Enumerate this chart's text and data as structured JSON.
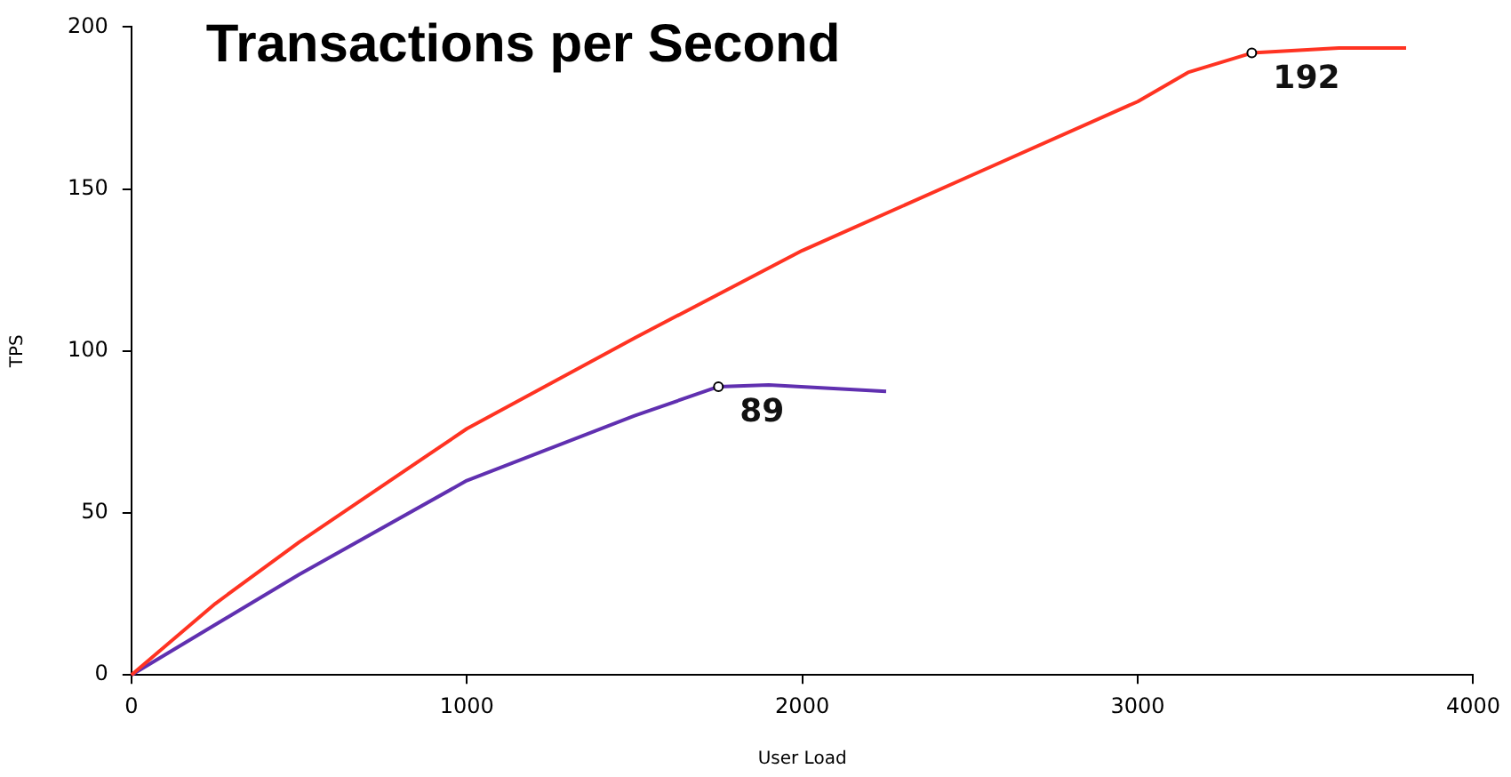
{
  "chart_data": {
    "type": "line",
    "title": "Transactions per Second",
    "xlabel": "User Load",
    "ylabel": "TPS",
    "xlim": [
      0,
      4000
    ],
    "xticks": [
      0,
      1000,
      2000,
      3000,
      4000
    ],
    "ylim": [
      0,
      200
    ],
    "yticks": [
      0,
      50,
      100,
      150,
      200
    ],
    "grid": false,
    "legend": false,
    "marker": "none",
    "series": [
      {
        "color": "#ff3322",
        "x": [
          0,
          250,
          500,
          1000,
          1500,
          2000,
          2500,
          3000,
          3150,
          3340,
          3600,
          3800
        ],
        "values": [
          0,
          22,
          41,
          76,
          104,
          131,
          154,
          177,
          186,
          192,
          193.5,
          193.5
        ]
      },
      {
        "color": "#6030b0",
        "x": [
          0,
          500,
          1000,
          1500,
          1750,
          1900,
          2250
        ],
        "values": [
          0,
          31,
          60,
          80,
          89,
          89.5,
          87.5
        ]
      }
    ],
    "annotations": [
      {
        "text": "192",
        "x": 3340,
        "y": 192
      },
      {
        "text": "89",
        "x": 1750,
        "y": 89
      }
    ]
  }
}
